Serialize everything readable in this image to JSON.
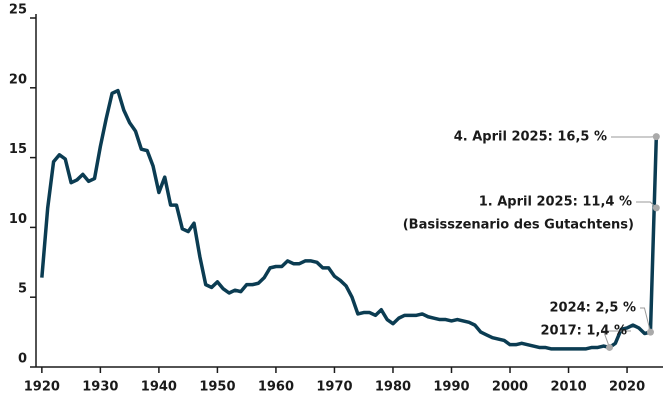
{
  "chart_data": {
    "type": "line",
    "x": [
      1920,
      1921,
      1922,
      1923,
      1924,
      1925,
      1926,
      1927,
      1928,
      1929,
      1930,
      1931,
      1932,
      1933,
      1934,
      1935,
      1936,
      1937,
      1938,
      1939,
      1940,
      1941,
      1942,
      1943,
      1944,
      1945,
      1946,
      1947,
      1948,
      1949,
      1950,
      1951,
      1952,
      1953,
      1954,
      1955,
      1956,
      1957,
      1958,
      1959,
      1960,
      1961,
      1962,
      1963,
      1964,
      1965,
      1966,
      1967,
      1968,
      1969,
      1970,
      1971,
      1972,
      1973,
      1974,
      1975,
      1976,
      1977,
      1978,
      1979,
      1980,
      1981,
      1982,
      1983,
      1984,
      1985,
      1986,
      1987,
      1988,
      1989,
      1990,
      1991,
      1992,
      1993,
      1994,
      1995,
      1996,
      1997,
      1998,
      1999,
      2000,
      2001,
      2002,
      2003,
      2004,
      2005,
      2006,
      2007,
      2008,
      2009,
      2010,
      2011,
      2012,
      2013,
      2014,
      2015,
      2016,
      2017,
      2018,
      2019,
      2020,
      2021,
      2022,
      2023,
      2024,
      2025
    ],
    "series": [
      {
        "color": "#0b3c52",
        "values": [
          6.4,
          11.4,
          14.7,
          15.2,
          14.9,
          13.2,
          13.4,
          13.8,
          13.3,
          13.5,
          15.8,
          17.8,
          19.6,
          19.8,
          18.4,
          17.5,
          16.9,
          15.6,
          15.5,
          14.4,
          12.5,
          13.6,
          11.6,
          11.6,
          9.9,
          9.7,
          10.3,
          7.9,
          5.9,
          5.7,
          6.1,
          5.6,
          5.3,
          5.5,
          5.4,
          5.9,
          5.9,
          6.0,
          6.4,
          7.1,
          7.2,
          7.2,
          7.6,
          7.4,
          7.4,
          7.6,
          7.6,
          7.5,
          7.1,
          7.1,
          6.5,
          6.2,
          5.8,
          5.0,
          3.8,
          3.9,
          3.9,
          3.7,
          4.1,
          3.4,
          3.1,
          3.5,
          3.7,
          3.7,
          3.7,
          3.8,
          3.6,
          3.5,
          3.4,
          3.4,
          3.3,
          3.4,
          3.3,
          3.2,
          3.0,
          2.5,
          2.3,
          2.1,
          2.0,
          1.9,
          1.6,
          1.6,
          1.7,
          1.6,
          1.5,
          1.4,
          1.4,
          1.3,
          1.3,
          1.3,
          1.3,
          1.3,
          1.3,
          1.3,
          1.4,
          1.4,
          1.5,
          1.4,
          1.7,
          2.7,
          2.8,
          3.0,
          2.8,
          2.4,
          2.5,
          16.5
        ]
      }
    ],
    "xlim": [
      1919,
      2025.8
    ],
    "xticks": [
      1920,
      1930,
      1940,
      1950,
      1960,
      1970,
      1980,
      1990,
      2000,
      2010,
      2020
    ],
    "ylim": [
      0,
      25
    ],
    "yticks": [
      0,
      5,
      10,
      15,
      20,
      25
    ],
    "annotations": [
      {
        "label": "4. April 2025: 16,5 %",
        "x": 2025,
        "y": 16.5
      },
      {
        "label": "1. April 2025: 11,4 %",
        "note": "(Basisszenario des Gutachtens)",
        "x": 2025,
        "y": 11.4
      },
      {
        "label": "2024: 2,5 %",
        "x": 2024,
        "y": 2.5
      },
      {
        "label": "2017: 1,4 %",
        "x": 2017,
        "y": 1.4
      }
    ]
  }
}
